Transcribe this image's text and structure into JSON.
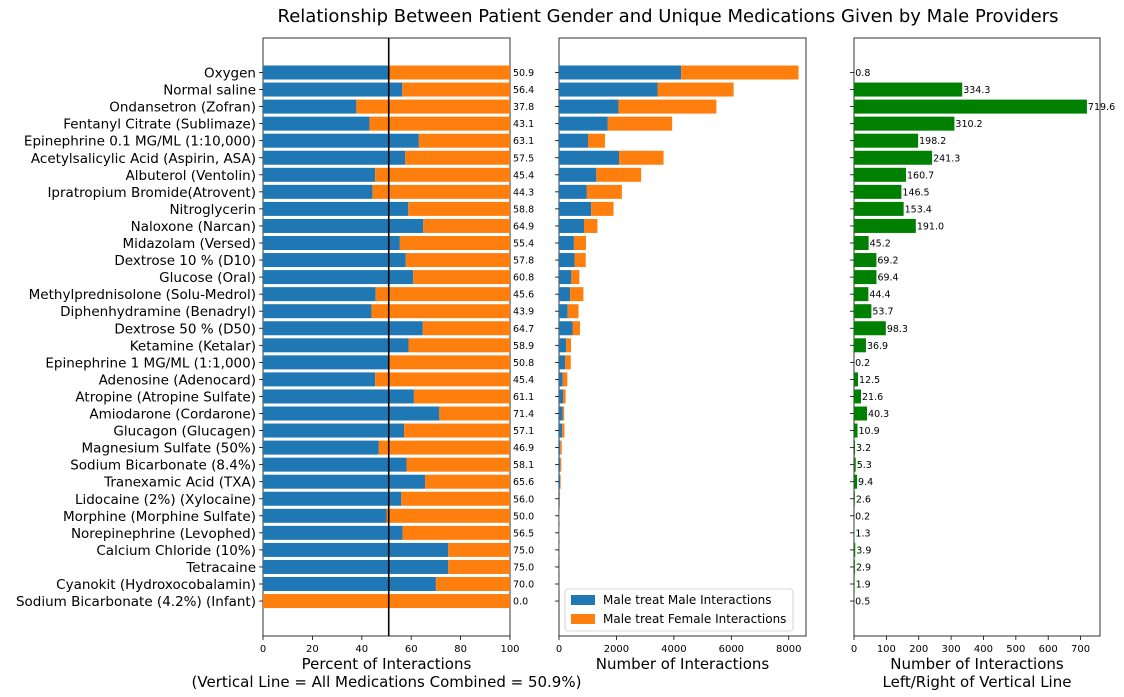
{
  "title": "Relationship Between Patient Gender and Unique Medications Given by Male Providers",
  "colors": {
    "male": "#1f77b4",
    "female": "#ff7f0e",
    "diff": "#008000",
    "axis": "#000000"
  },
  "medications": [
    "Oxygen",
    "Normal saline",
    "Ondansetron (Zofran)",
    "Fentanyl Citrate (Sublimaze)",
    "Epinephrine 0.1 MG/ML (1:10,000)",
    "Acetylsalicylic Acid (Aspirin, ASA)",
    "Albuterol (Ventolin)",
    "Ipratropium Bromide(Atrovent)",
    "Nitroglycerin",
    "Naloxone (Narcan)",
    "Midazolam (Versed)",
    "Dextrose 10 % (D10)",
    "Glucose (Oral)",
    "Methylprednisolone (Solu-Medrol)",
    "Diphenhydramine (Benadryl)",
    "Dextrose 50 % (D50)",
    "Ketamine (Ketalar)",
    "Epinephrine 1 MG/ML (1:1,000)",
    "Adenosine (Adenocard)",
    "Atropine (Atropine Sulfate)",
    "Amiodarone (Cordarone)",
    "Glucagon (Glucagen)",
    "Magnesium Sulfate (50%)",
    "Sodium Bicarbonate (8.4%)",
    "Tranexamic Acid (TXA)",
    "Lidocaine (2%) (Xylocaine)",
    "Morphine (Morphine Sulfate)",
    "Norepinephrine (Levophed)",
    "Calcium Chloride (10%)",
    "Tetracaine",
    "Cyanokit (Hydroxocobalamin)",
    "Sodium Bicarbonate (4.2%) (Infant)"
  ],
  "chart_data": [
    {
      "type": "bar",
      "orientation": "horizontal",
      "stacked": true,
      "xlabel": "Percent of Interactions",
      "xlabel2": "(Vertical Line = All Medications Combined = 50.9%)",
      "xlim": [
        0,
        100
      ],
      "xticks": [
        "0",
        "20",
        "40",
        "60",
        "80",
        "100"
      ],
      "reference_line": 50.9,
      "series": [
        {
          "values": [
            50.9,
            56.4,
            37.8,
            43.1,
            63.1,
            57.5,
            45.4,
            44.3,
            58.8,
            64.9,
            55.4,
            57.8,
            60.8,
            45.6,
            43.9,
            64.7,
            58.9,
            50.8,
            45.4,
            61.1,
            71.4,
            57.1,
            46.9,
            58.1,
            65.6,
            56.0,
            50.0,
            56.5,
            75.0,
            75.0,
            70.0,
            0.0
          ]
        }
      ],
      "value_labels": [
        "50.9",
        "56.4",
        "37.8",
        "43.1",
        "63.1",
        "57.5",
        "45.4",
        "44.3",
        "58.8",
        "64.9",
        "55.4",
        "57.8",
        "60.8",
        "45.6",
        "43.9",
        "64.7",
        "58.9",
        "50.8",
        "45.4",
        "61.1",
        "71.4",
        "57.1",
        "46.9",
        "58.1",
        "65.6",
        "56.0",
        "50.0",
        "56.5",
        "75.0",
        "75.0",
        "70.0",
        "0.0"
      ]
    },
    {
      "type": "bar",
      "orientation": "horizontal",
      "stacked": true,
      "xlabel": "Number of Interactions",
      "xlim": [
        0,
        8600
      ],
      "xticks": [
        "0",
        "2000",
        "4000",
        "6000",
        "8000"
      ],
      "legend": "lower-right",
      "series": [
        {
          "name": "Male treat Male Interactions",
          "values": [
            4250,
            3430,
            2070,
            1700,
            1010,
            2090,
            1300,
            970,
            1120,
            870,
            520,
            540,
            430,
            390,
            300,
            470,
            250,
            210,
            130,
            140,
            130,
            110,
            45,
            45,
            40,
            20,
            8,
            10,
            10,
            8,
            5,
            0
          ]
        },
        {
          "name": "Male treat Female Interactions",
          "values": [
            4090,
            2650,
            3410,
            2240,
            590,
            1550,
            1560,
            1220,
            780,
            470,
            420,
            390,
            280,
            460,
            380,
            260,
            170,
            200,
            160,
            90,
            50,
            80,
            50,
            35,
            20,
            16,
            8,
            8,
            3,
            2,
            2,
            1
          ]
        }
      ]
    },
    {
      "type": "bar",
      "orientation": "horizontal",
      "xlabel": "Number of Interactions",
      "xlabel2": "Left/Right of Vertical Line",
      "xlim": [
        0,
        760
      ],
      "xticks": [
        "0",
        "100",
        "200",
        "300",
        "400",
        "500",
        "600",
        "700"
      ],
      "values": [
        0.8,
        334.3,
        719.6,
        310.2,
        198.2,
        241.3,
        160.7,
        146.5,
        153.4,
        191.0,
        45.2,
        69.2,
        69.4,
        44.4,
        53.7,
        98.3,
        36.9,
        0.2,
        12.5,
        21.6,
        40.3,
        10.9,
        3.2,
        5.3,
        9.4,
        2.6,
        0.2,
        1.3,
        3.9,
        2.9,
        1.9,
        0.5
      ],
      "value_labels": [
        "0.8",
        "334.3",
        "719.6",
        "310.2",
        "198.2",
        "241.3",
        "160.7",
        "146.5",
        "153.4",
        "191.0",
        "45.2",
        "69.2",
        "69.4",
        "44.4",
        "53.7",
        "98.3",
        "36.9",
        "0.2",
        "12.5",
        "21.6",
        "40.3",
        "10.9",
        "3.2",
        "5.3",
        "9.4",
        "2.6",
        "0.2",
        "1.3",
        "3.9",
        "2.9",
        "1.9",
        "0.5"
      ]
    }
  ]
}
